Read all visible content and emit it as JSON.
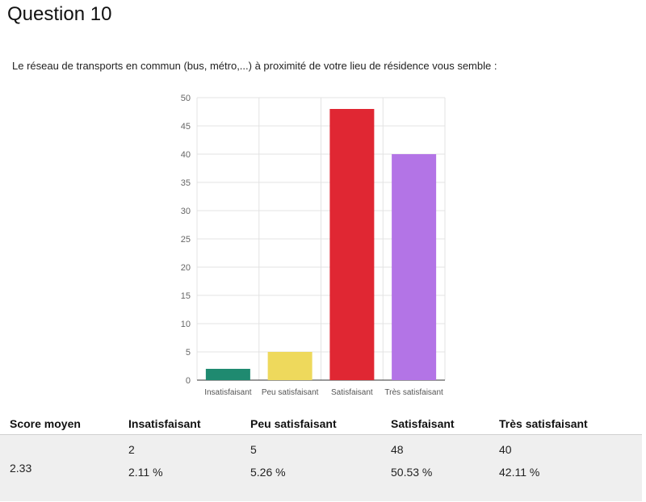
{
  "title": "Question 10",
  "question": "Le réseau de transports en commun (bus, métro,...) à proximité de votre lieu de résidence vous semble :",
  "chart_data": {
    "type": "bar",
    "categories": [
      "Insatisfaisant",
      "Peu satisfaisant",
      "Satisfaisant",
      "Très satisfaisant"
    ],
    "values": [
      2,
      5,
      48,
      40
    ],
    "colors": [
      "#1f8a70",
      "#eed95c",
      "#e02733",
      "#b374e6"
    ],
    "yticks": [
      0,
      5,
      10,
      15,
      20,
      25,
      30,
      35,
      40,
      45,
      50
    ],
    "ylim": [
      0,
      50
    ],
    "grid": true,
    "title": "",
    "xlabel": "",
    "ylabel": ""
  },
  "table": {
    "headers": [
      "Score moyen",
      "Insatisfaisant",
      "Peu satisfaisant",
      "Satisfaisant",
      "Très satisfaisant"
    ],
    "score": "2.33",
    "counts": [
      "2",
      "5",
      "48",
      "40"
    ],
    "percents": [
      "2.11 %",
      "5.26 %",
      "50.53 %",
      "42.11 %"
    ]
  }
}
